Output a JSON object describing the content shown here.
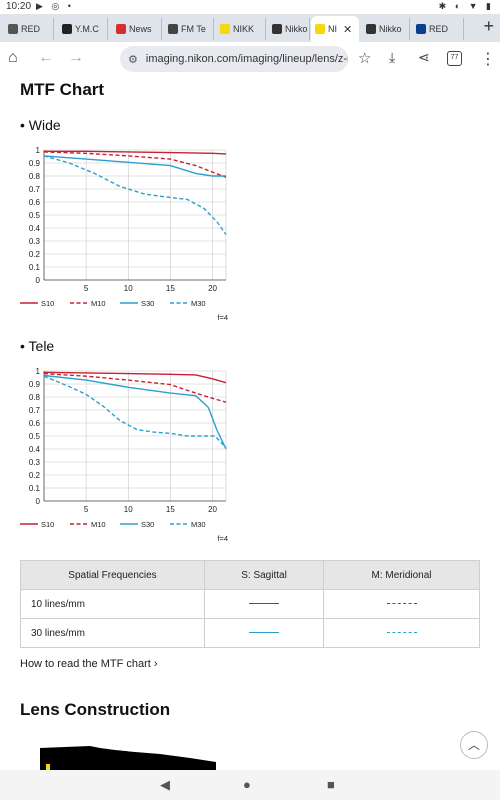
{
  "status_bar": {
    "time": "10:20"
  },
  "tabs": [
    {
      "label": "RED",
      "color": "#555555",
      "active": false
    },
    {
      "label": "Y.M.C",
      "color": "#222222",
      "active": false
    },
    {
      "label": "News",
      "color": "#d32f2f",
      "active": false
    },
    {
      "label": "FM Te",
      "color": "#444444",
      "active": false
    },
    {
      "label": "NIKK",
      "color": "#f5d90a",
      "active": false
    },
    {
      "label": "Nikko",
      "color": "#333333",
      "active": false
    },
    {
      "label": "NI",
      "color": "#f5d90a",
      "active": true
    },
    {
      "label": "Nikko",
      "color": "#333333",
      "active": false
    },
    {
      "label": "RED",
      "color": "#0b3d91",
      "active": false
    }
  ],
  "toolbar": {
    "url": "imaging.nikon.com/imaging/lineup/lens/z-r",
    "tab_count": "77"
  },
  "page": {
    "mtf_title": "MTF Chart",
    "wide_label": "• Wide",
    "tele_label": "• Tele",
    "table": {
      "headers": [
        "Spatial Frequencies",
        "S: Sagittal",
        "M: Meridional"
      ],
      "rows": [
        {
          "label": "10 lines/mm",
          "color": "#c8202f"
        },
        {
          "label": "30 lines/mm",
          "color": "#2aa0cf"
        }
      ]
    },
    "howto_link": "How to read the MTF chart",
    "lens_title": "Lens Construction"
  },
  "chart_data": [
    {
      "type": "line",
      "xlim": [
        0,
        21.6
      ],
      "ylim": [
        0,
        1
      ],
      "x_ticks": [
        5,
        10,
        15,
        20
      ],
      "y_ticks": [
        0,
        0.1,
        0.2,
        0.3,
        0.4,
        0.5,
        0.6,
        0.7,
        0.8,
        0.9,
        1
      ],
      "grid": true,
      "legend_position": "bottom",
      "note": "f=4",
      "series": [
        {
          "name": "S10",
          "color": "#c8202f",
          "dash": false,
          "points": [
            [
              0,
              0.99
            ],
            [
              5,
              0.99
            ],
            [
              10,
              0.985
            ],
            [
              15,
              0.98
            ],
            [
              20,
              0.975
            ],
            [
              21.6,
              0.97
            ]
          ]
        },
        {
          "name": "M10",
          "color": "#c8202f",
          "dash": true,
          "points": [
            [
              0,
              0.985
            ],
            [
              5,
              0.975
            ],
            [
              10,
              0.955
            ],
            [
              15,
              0.93
            ],
            [
              18,
              0.88
            ],
            [
              20,
              0.83
            ],
            [
              21.6,
              0.79
            ]
          ]
        },
        {
          "name": "S30",
          "color": "#2aa0cf",
          "dash": false,
          "points": [
            [
              0,
              0.955
            ],
            [
              5,
              0.93
            ],
            [
              10,
              0.905
            ],
            [
              15,
              0.88
            ],
            [
              18,
              0.82
            ],
            [
              20,
              0.8
            ],
            [
              21.6,
              0.8
            ]
          ]
        },
        {
          "name": "M30",
          "color": "#2aa0cf",
          "dash": true,
          "points": [
            [
              0,
              0.955
            ],
            [
              3,
              0.9
            ],
            [
              6,
              0.82
            ],
            [
              9,
              0.72
            ],
            [
              12,
              0.66
            ],
            [
              15,
              0.635
            ],
            [
              17,
              0.62
            ],
            [
              19,
              0.55
            ],
            [
              20.5,
              0.45
            ],
            [
              21.6,
              0.35
            ]
          ]
        }
      ]
    },
    {
      "type": "line",
      "xlim": [
        0,
        21.6
      ],
      "ylim": [
        0,
        1
      ],
      "x_ticks": [
        5,
        10,
        15,
        20
      ],
      "y_ticks": [
        0,
        0.1,
        0.2,
        0.3,
        0.4,
        0.5,
        0.6,
        0.7,
        0.8,
        0.9,
        1
      ],
      "grid": true,
      "legend_position": "bottom",
      "note": "f=4",
      "series": [
        {
          "name": "S10",
          "color": "#c8202f",
          "dash": false,
          "points": [
            [
              0,
              0.99
            ],
            [
              5,
              0.985
            ],
            [
              10,
              0.98
            ],
            [
              15,
              0.975
            ],
            [
              18,
              0.97
            ],
            [
              20,
              0.94
            ],
            [
              21.6,
              0.91
            ]
          ]
        },
        {
          "name": "M10",
          "color": "#c8202f",
          "dash": true,
          "points": [
            [
              0,
              0.98
            ],
            [
              5,
              0.96
            ],
            [
              10,
              0.93
            ],
            [
              15,
              0.895
            ],
            [
              18,
              0.83
            ],
            [
              20,
              0.79
            ],
            [
              21.6,
              0.76
            ]
          ]
        },
        {
          "name": "S30",
          "color": "#2aa0cf",
          "dash": false,
          "points": [
            [
              0,
              0.965
            ],
            [
              5,
              0.93
            ],
            [
              10,
              0.875
            ],
            [
              15,
              0.83
            ],
            [
              18,
              0.81
            ],
            [
              19.5,
              0.72
            ],
            [
              20.5,
              0.55
            ],
            [
              21.6,
              0.4
            ]
          ]
        },
        {
          "name": "M30",
          "color": "#2aa0cf",
          "dash": true,
          "points": [
            [
              0,
              0.96
            ],
            [
              3,
              0.88
            ],
            [
              5,
              0.82
            ],
            [
              7,
              0.73
            ],
            [
              9,
              0.62
            ],
            [
              11,
              0.55
            ],
            [
              13,
              0.53
            ],
            [
              15,
              0.52
            ],
            [
              17,
              0.5
            ],
            [
              19,
              0.5
            ],
            [
              20.3,
              0.5
            ],
            [
              21.6,
              0.41
            ]
          ]
        }
      ]
    }
  ]
}
